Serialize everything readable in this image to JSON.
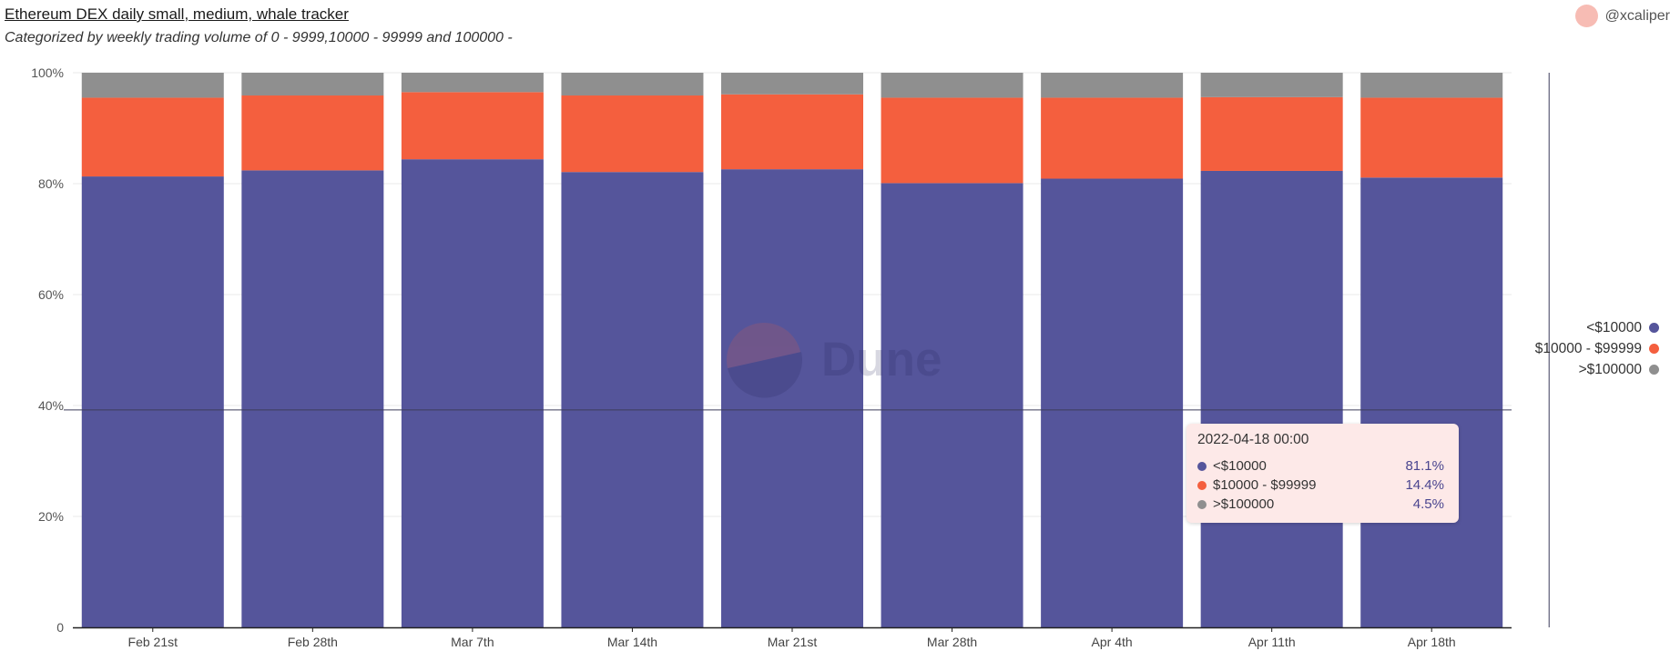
{
  "header": {
    "title": "Ethereum DEX daily small, medium, whale tracker",
    "subtitle": "Categorized by weekly trading volume of 0 - 9999,10000 - 99999 and 100000 -",
    "author": "@xcaliper"
  },
  "watermark": "Dune",
  "colors": {
    "small": "#55559b",
    "medium": "#f45f3e",
    "whale": "#8f8f8f",
    "avatar": "#f7bcb4",
    "tooltip_bg": "#fde9e8"
  },
  "chart_data": {
    "type": "bar",
    "stacked": true,
    "normalized": true,
    "categories": [
      "Feb 21st",
      "Feb 28th",
      "Mar 7th",
      "Mar 14th",
      "Mar 21st",
      "Mar 28th",
      "Apr 4th",
      "Apr 11th",
      "Apr 18th"
    ],
    "series": [
      {
        "name": "<$10000",
        "values": [
          81.3,
          82.4,
          84.4,
          82.1,
          82.6,
          80.1,
          80.9,
          82.3,
          81.1
        ]
      },
      {
        "name": "$10000 - $99999",
        "values": [
          14.2,
          13.5,
          12.1,
          13.8,
          13.5,
          15.4,
          14.6,
          13.3,
          14.4
        ]
      },
      {
        "name": ">$100000",
        "values": [
          4.5,
          4.1,
          3.5,
          4.1,
          3.9,
          4.5,
          4.5,
          4.4,
          4.5
        ]
      }
    ],
    "yticks": [
      "0",
      "20%",
      "40%",
      "60%",
      "80%",
      "100%"
    ],
    "ylim": [
      0,
      100
    ],
    "grid": true,
    "legend": "right",
    "crosshair": {
      "x_category": "Apr 18th",
      "y_value": 39.2
    }
  },
  "tooltip": {
    "title": "2022-04-18 00:00",
    "rows": [
      {
        "label": "<$10000",
        "value": "81.1%"
      },
      {
        "label": "$10000 - $99999",
        "value": "14.4%"
      },
      {
        "label": ">$100000",
        "value": "4.5%"
      }
    ]
  }
}
